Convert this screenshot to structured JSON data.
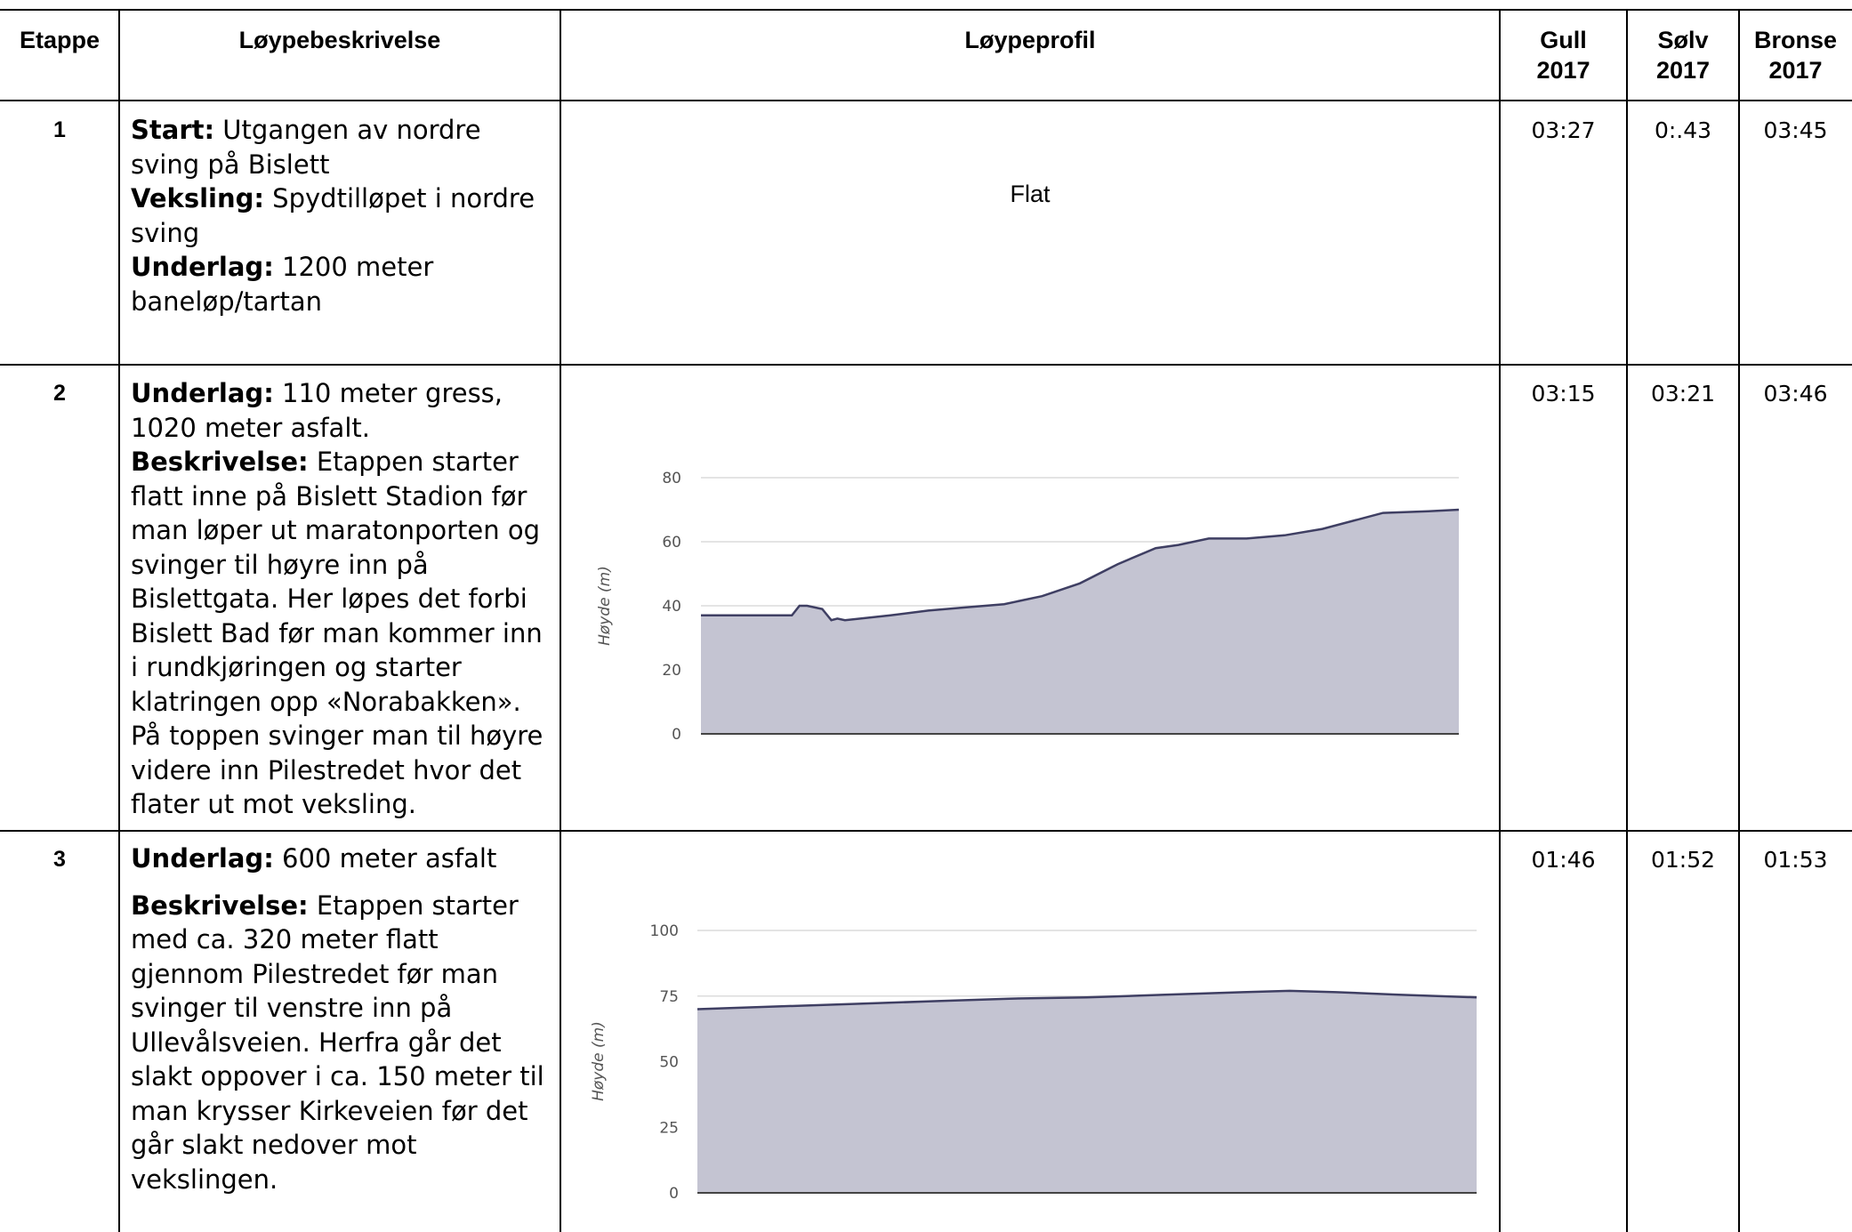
{
  "header": {
    "etappe": "Etappe",
    "beskrivelse": "Løypebeskrivelse",
    "profil": "Løypeprofil",
    "gull_1": "Gull",
    "gull_2": "2017",
    "solv_1": "Sølv",
    "solv_2": "2017",
    "bronse_1": "Bronse",
    "bronse_2": "2017"
  },
  "rows": [
    {
      "number": "1",
      "description": [
        {
          "label": "Start:",
          "text": " Utgangen av nordre sving på Bislett"
        },
        {
          "label": "Veksling:",
          "text": " Spydtilløpet i nordre sving"
        },
        {
          "label": "Underlag:",
          "text": " 1200 meter baneløp/tartan"
        }
      ],
      "profile_text": "Flat",
      "gull": "03:27",
      "solv": "0:.43",
      "bronse": "03:45"
    },
    {
      "number": "2",
      "description": [
        {
          "label": "Underlag:",
          "text": " 110 meter gress, 1020 meter asfalt."
        },
        {
          "label": "Beskrivelse:",
          "text": " Etappen starter flatt inne på Bislett Stadion før man løper ut maratonporten og svinger til høyre inn på Bislettgata. Her løpes det forbi Bislett Bad før man kommer inn i rundkjøringen og starter klatringen opp «Norabakken». På toppen svinger man til høyre videre inn Pilestredet hvor det flater ut mot veksling."
        }
      ],
      "gull": "03:15",
      "solv": "03:21",
      "bronse": "03:46"
    },
    {
      "number": "3",
      "description": [
        {
          "label": "Underlag:",
          "text": " 600 meter asfalt"
        },
        {
          "label": "Beskrivelse:",
          "text": " Etappen starter med ca. 320 meter flatt gjennom Pilestredet før man svinger til venstre inn på Ullevålsveien. Herfra går det slakt oppover i ca. 150 meter til man krysser Kirkeveien før det går slakt nedover mot vekslingen."
        }
      ],
      "gull": "01:46",
      "solv": "01:52",
      "bronse": "01:53"
    }
  ],
  "chart_data": [
    {
      "type": "area",
      "ylabel": "Høyde (m)",
      "ylim": [
        0,
        80
      ],
      "yticks": [
        0,
        20,
        40,
        60,
        80
      ],
      "grid": true,
      "fill_color": "#c4c4d2",
      "line_color": "#3f3f63",
      "x": [
        0,
        0.06,
        0.12,
        0.13,
        0.14,
        0.16,
        0.172,
        0.18,
        0.19,
        0.25,
        0.3,
        0.35,
        0.4,
        0.45,
        0.5,
        0.55,
        0.6,
        0.63,
        0.67,
        0.72,
        0.77,
        0.82,
        0.9,
        0.96,
        1.0
      ],
      "y": [
        37,
        37,
        37,
        40,
        40,
        39,
        35.5,
        36,
        35.5,
        37,
        38.5,
        39.5,
        40.5,
        43,
        47,
        53,
        58,
        59,
        61,
        61,
        62,
        64,
        69,
        69.5,
        70
      ]
    },
    {
      "type": "area",
      "ylabel": "Høyde (m)",
      "ylim": [
        0,
        100
      ],
      "yticks": [
        0,
        25,
        50,
        75,
        100
      ],
      "grid": true,
      "fill_color": "#c4c4d2",
      "line_color": "#3f3f63",
      "x": [
        0,
        0.1,
        0.2,
        0.3,
        0.4,
        0.5,
        0.6,
        0.7,
        0.76,
        0.82,
        0.9,
        1.0
      ],
      "y": [
        70,
        71,
        72,
        73,
        74,
        74.5,
        75.5,
        76.5,
        77,
        76.5,
        75.5,
        74.5
      ]
    }
  ]
}
